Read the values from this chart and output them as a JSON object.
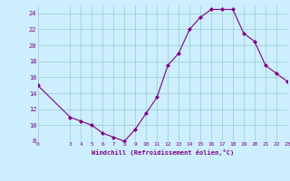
{
  "x": [
    0,
    3,
    4,
    5,
    6,
    7,
    8,
    9,
    10,
    11,
    12,
    13,
    14,
    15,
    16,
    17,
    18,
    19,
    20,
    21,
    22,
    23
  ],
  "y": [
    15,
    11,
    10.5,
    10,
    9,
    8.5,
    8,
    9.5,
    11.5,
    13.5,
    17.5,
    19,
    22,
    23.5,
    24.5,
    24.5,
    24.5,
    21.5,
    20.5,
    17.5,
    16.5,
    15.5
  ],
  "xlabel": "Windchill (Refroidissement éolien,°C)",
  "xlim": [
    0,
    23
  ],
  "ylim": [
    8,
    25
  ],
  "yticks": [
    8,
    10,
    12,
    14,
    16,
    18,
    20,
    22,
    24
  ],
  "xticks": [
    0,
    3,
    4,
    5,
    6,
    7,
    8,
    9,
    10,
    11,
    12,
    13,
    14,
    15,
    16,
    17,
    18,
    19,
    20,
    21,
    22,
    23
  ],
  "line_color": "#800080",
  "marker": "D",
  "marker_size": 2,
  "bg_color": "#cceeff",
  "grid_color": "#99cccc",
  "label_color": "#800080",
  "tick_color": "#800080"
}
